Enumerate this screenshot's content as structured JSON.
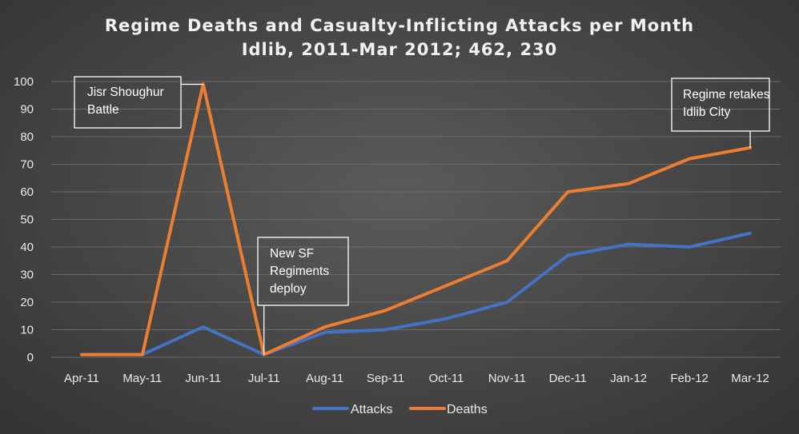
{
  "chart_data": {
    "type": "line",
    "title": "Regime Deaths and Casualty-Inflicting  Attacks per Month",
    "subtitle": "Idlib, 2011-Mar 2012; 462, 230",
    "categories": [
      "Apr-11",
      "May-11",
      "Jun-11",
      "Jul-11",
      "Aug-11",
      "Sep-11",
      "Oct-11",
      "Nov-11",
      "Dec-11",
      "Jan-12",
      "Feb-12",
      "Mar-12"
    ],
    "ylim": [
      0,
      100
    ],
    "yticks": [
      0,
      10,
      20,
      30,
      40,
      50,
      60,
      70,
      80,
      90,
      100
    ],
    "grid": true,
    "legend": "bottom-center",
    "series": [
      {
        "name": "Attacks",
        "color": "#4472c4",
        "values": [
          1,
          1,
          11,
          1,
          9,
          10,
          14,
          20,
          37,
          41,
          40,
          45
        ]
      },
      {
        "name": "Deaths",
        "color": "#ed7d31",
        "values": [
          1,
          1,
          99,
          1,
          11,
          17,
          26,
          35,
          60,
          63,
          72,
          76
        ]
      }
    ],
    "annotations": [
      {
        "lines": [
          "Jisr Shoughur",
          "Battle"
        ],
        "category": "Jun-11",
        "series": "Deaths"
      },
      {
        "lines": [
          "New SF",
          "Regiments",
          "deploy"
        ],
        "category": "Jul-11",
        "series": "Deaths"
      },
      {
        "lines": [
          "Regime retakes",
          "Idlib City"
        ],
        "category": "Mar-12",
        "series": "Deaths"
      }
    ]
  }
}
